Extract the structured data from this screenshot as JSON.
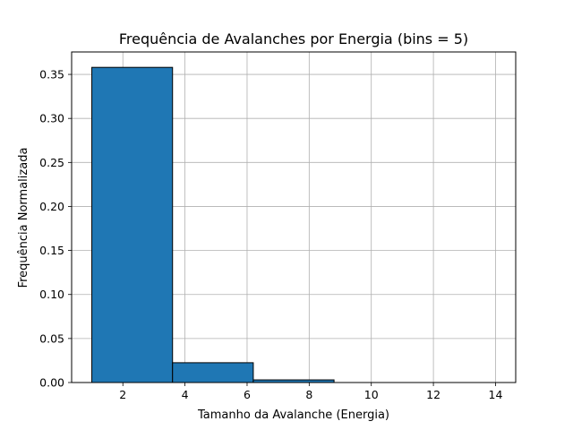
{
  "chart_data": {
    "type": "bar",
    "title": "Frequência de Avalanches por Energia (bins = 5)",
    "xlabel": "Tamanho da Avalanche (Energia)",
    "ylabel": "Frequência Normalizada",
    "xlim": [
      0.35,
      14.65
    ],
    "ylim": [
      0,
      0.3755
    ],
    "xticks": [
      2,
      4,
      6,
      8,
      10,
      12,
      14
    ],
    "xtick_labels": [
      "2",
      "4",
      "6",
      "8",
      "10",
      "12",
      "14"
    ],
    "yticks": [
      0.0,
      0.05,
      0.1,
      0.15,
      0.2,
      0.25,
      0.3,
      0.35
    ],
    "ytick_labels": [
      "0.00",
      "0.05",
      "0.10",
      "0.15",
      "0.20",
      "0.25",
      "0.30",
      "0.35"
    ],
    "bins": [
      {
        "x0": 1.0,
        "x1": 3.6,
        "value": 0.358
      },
      {
        "x0": 3.6,
        "x1": 6.2,
        "value": 0.0225
      },
      {
        "x0": 6.2,
        "x1": 8.8,
        "value": 0.003
      },
      {
        "x0": 8.8,
        "x1": 11.4,
        "value": 0.0
      },
      {
        "x0": 11.4,
        "x1": 14.0,
        "value": 0.0
      }
    ],
    "grid": true,
    "bar_color": "#1f77b4",
    "edge_color": "#000000"
  }
}
